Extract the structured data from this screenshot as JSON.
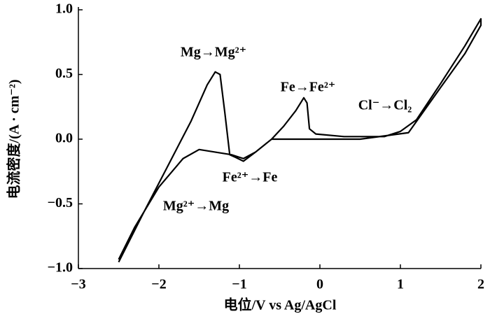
{
  "chart_data": {
    "type": "line",
    "xlabel": "电位/V vs Ag/AgCl",
    "ylabel": "电流密度/(A · cm⁻²)",
    "xlim": [
      -3,
      2
    ],
    "ylim": [
      -1,
      1
    ],
    "xticks": [
      {
        "value": -3,
        "label": "−3"
      },
      {
        "value": -2,
        "label": "−2"
      },
      {
        "value": -1,
        "label": "−1"
      },
      0,
      1,
      2
    ],
    "yticks": [
      {
        "value": -1,
        "label": "−1.0"
      },
      {
        "value": -0.5,
        "label": "−0.5"
      },
      {
        "value": 0,
        "label": "0.0"
      },
      {
        "value": 0.5,
        "label": "0.5"
      },
      {
        "value": 1,
        "label": "1.0"
      }
    ],
    "series": [
      {
        "color": "#000000",
        "x": [
          -2.5,
          -2.2,
          -1.9,
          -1.6,
          -1.4,
          -1.3,
          -1.24,
          -1.18,
          -1.12,
          -1.05,
          -0.95,
          -0.8,
          -0.6,
          -0.45,
          -0.3,
          -0.2,
          -0.16,
          -0.13,
          -0.05,
          0.3,
          0.8,
          1.0,
          1.2,
          1.5,
          1.8,
          2.0,
          2.0,
          1.8,
          1.5,
          1.1,
          0.5,
          -0.6,
          -0.8,
          -0.95,
          -1.1,
          -1.5,
          -1.7,
          -2.0,
          -2.3,
          -2.5
        ],
        "values": [
          -0.95,
          -0.58,
          -0.22,
          0.14,
          0.42,
          0.52,
          0.5,
          0.2,
          -0.12,
          -0.14,
          -0.17,
          -0.1,
          0.0,
          0.1,
          0.22,
          0.32,
          0.28,
          0.08,
          0.04,
          0.02,
          0.02,
          0.06,
          0.15,
          0.43,
          0.72,
          0.93,
          0.88,
          0.66,
          0.4,
          0.05,
          0.0,
          0.0,
          -0.1,
          -0.15,
          -0.12,
          -0.08,
          -0.15,
          -0.37,
          -0.68,
          -0.93
        ]
      }
    ],
    "annotations": [
      "Mg→Mg²⁺",
      "Fe→Fe²⁺",
      "Cl⁻→Cl₂",
      "Fe²⁺→Fe",
      "Mg²⁺→Mg"
    ]
  }
}
